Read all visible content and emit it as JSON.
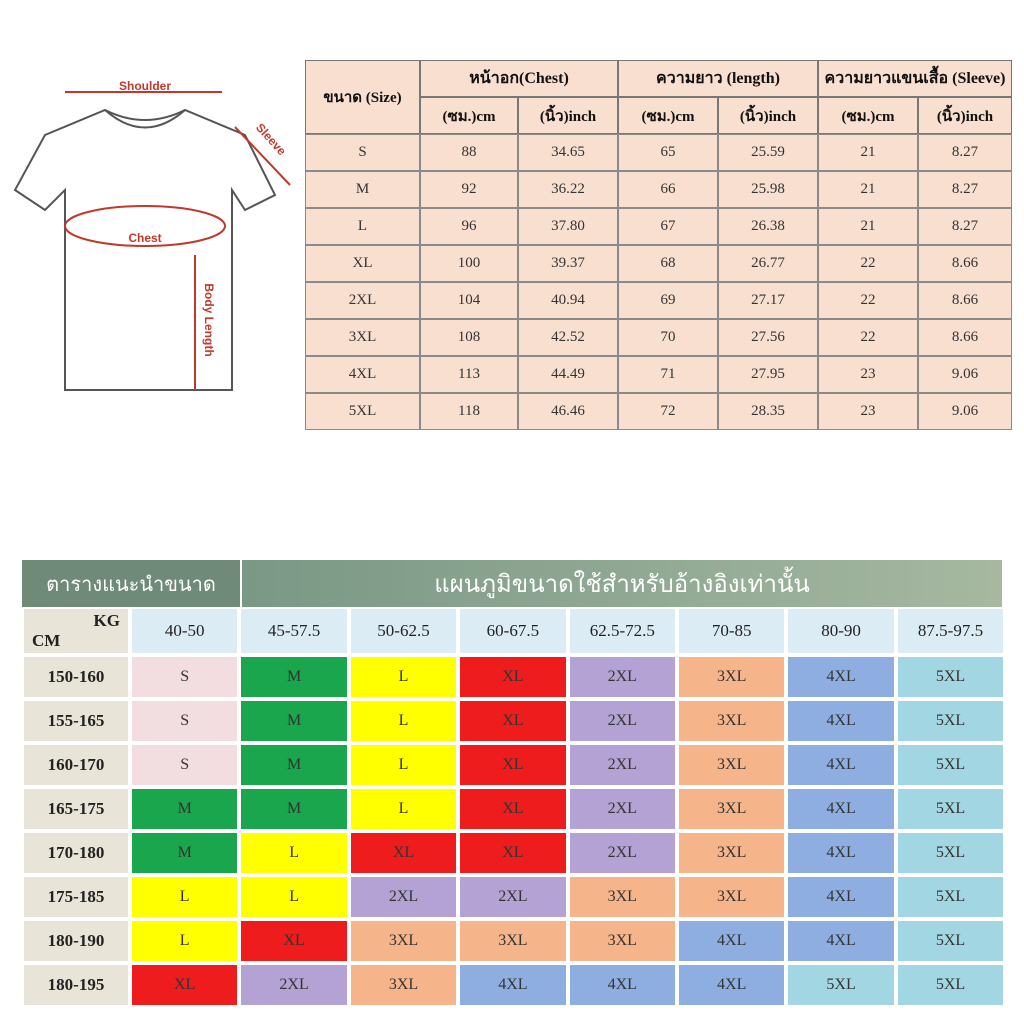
{
  "diagram": {
    "shoulder": "Shoulder",
    "sleeve": "Sleeve",
    "chest": "Chest",
    "body_length": "Body Length"
  },
  "size_table": {
    "size_header": "ขนาด (Size)",
    "groups": [
      "หน้าอก(Chest)",
      "ความยาว (length)",
      "ความยาวแขนเสื้อ (Sleeve)"
    ],
    "units": [
      "(ซม.)cm",
      "(นิ้ว)inch",
      "(ซม.)cm",
      "(นิ้ว)inch",
      "(ซม.)cm",
      "(นิ้ว)inch"
    ],
    "rows": [
      [
        "S",
        "88",
        "34.65",
        "65",
        "25.59",
        "21",
        "8.27"
      ],
      [
        "M",
        "92",
        "36.22",
        "66",
        "25.98",
        "21",
        "8.27"
      ],
      [
        "L",
        "96",
        "37.80",
        "67",
        "26.38",
        "21",
        "8.27"
      ],
      [
        "XL",
        "100",
        "39.37",
        "68",
        "26.77",
        "22",
        "8.66"
      ],
      [
        "2XL",
        "104",
        "40.94",
        "69",
        "27.17",
        "22",
        "8.66"
      ],
      [
        "3XL",
        "108",
        "42.52",
        "70",
        "27.56",
        "22",
        "8.66"
      ],
      [
        "4XL",
        "113",
        "44.49",
        "71",
        "27.95",
        "23",
        "9.06"
      ],
      [
        "5XL",
        "118",
        "46.46",
        "72",
        "28.35",
        "23",
        "9.06"
      ]
    ]
  },
  "recommend": {
    "title_left": "ตารางแนะนำขนาด",
    "title_right": "แผนภูมิขนาดใช้สำหรับอ้างอิงเท่านั้น",
    "corner_kg": "KG",
    "corner_cm": "CM",
    "weights": [
      "40-50",
      "45-57.5",
      "50-62.5",
      "60-67.5",
      "62.5-72.5",
      "70-85",
      "80-90",
      "87.5-97.5"
    ],
    "rows": [
      {
        "height": "150-160",
        "sizes": [
          "S",
          "M",
          "L",
          "XL",
          "2XL",
          "3XL",
          "4XL",
          "5XL"
        ]
      },
      {
        "height": "155-165",
        "sizes": [
          "S",
          "M",
          "L",
          "XL",
          "2XL",
          "3XL",
          "4XL",
          "5XL"
        ]
      },
      {
        "height": "160-170",
        "sizes": [
          "S",
          "M",
          "L",
          "XL",
          "2XL",
          "3XL",
          "4XL",
          "5XL"
        ]
      },
      {
        "height": "165-175",
        "sizes": [
          "M",
          "M",
          "L",
          "XL",
          "2XL",
          "3XL",
          "4XL",
          "5XL"
        ]
      },
      {
        "height": "170-180",
        "sizes": [
          "M",
          "L",
          "XL",
          "XL",
          "2XL",
          "3XL",
          "4XL",
          "5XL"
        ]
      },
      {
        "height": "175-185",
        "sizes": [
          "L",
          "L",
          "2XL",
          "2XL",
          "3XL",
          "3XL",
          "4XL",
          "5XL"
        ]
      },
      {
        "height": "180-190",
        "sizes": [
          "L",
          "XL",
          "3XL",
          "3XL",
          "3XL",
          "4XL",
          "4XL",
          "5XL"
        ]
      },
      {
        "height": "180-195",
        "sizes": [
          "XL",
          "2XL",
          "3XL",
          "4XL",
          "4XL",
          "4XL",
          "5XL",
          "5XL"
        ]
      }
    ]
  }
}
